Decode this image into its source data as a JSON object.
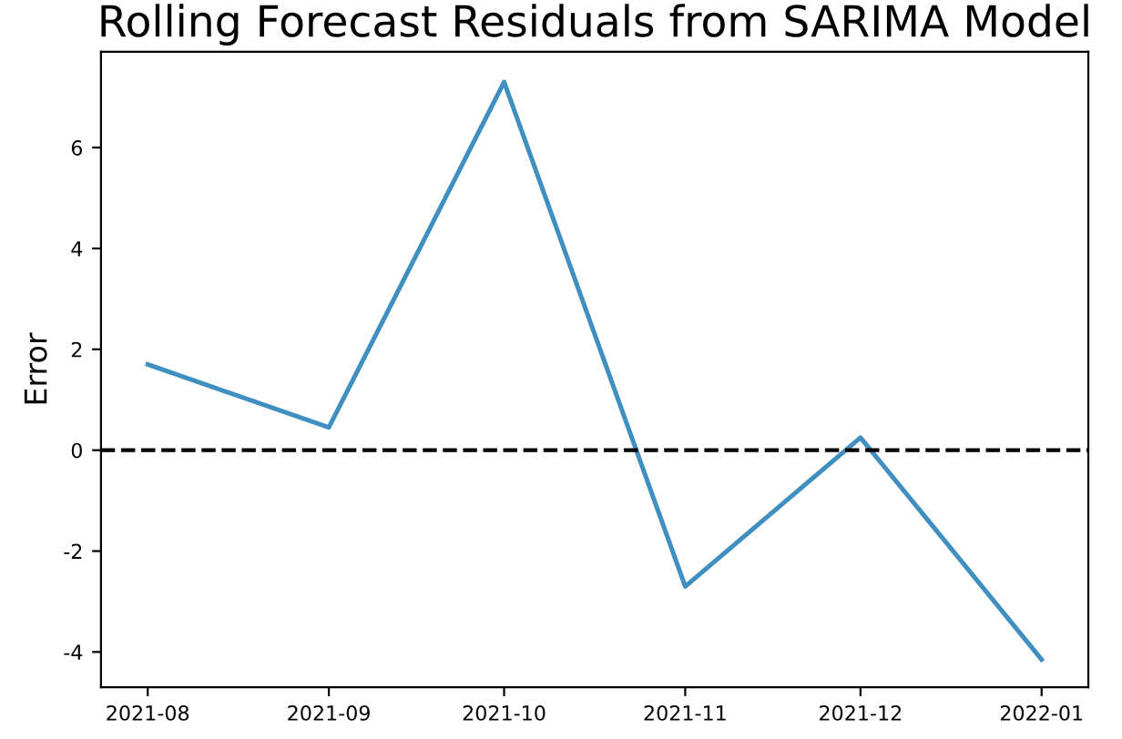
{
  "chart_data": {
    "type": "line",
    "title": "Rolling Forecast Residuals from SARIMA Model",
    "ylabel": "Error",
    "x": [
      "2021-08",
      "2021-09",
      "2021-10",
      "2021-11",
      "2021-12",
      "2022-01"
    ],
    "series": [
      {
        "color": "#3f8fc0",
        "values": [
          1.7,
          0.45,
          7.3,
          -2.7,
          0.25,
          -4.15
        ]
      }
    ],
    "xlim": [
      "2021-07-24",
      "2022-01-09"
    ],
    "xticks": [
      "2021-08",
      "2021-09",
      "2021-10",
      "2021-11",
      "2021-12",
      "2022-01"
    ],
    "ylim": [
      -4.7,
      7.9
    ],
    "yticks": [
      -4,
      -2,
      0,
      2,
      4,
      6
    ],
    "ref_lines": [
      {
        "axis": "y",
        "value": 0,
        "color": "#000000",
        "line_style": "dashed"
      }
    ],
    "grid": false,
    "legend": false,
    "marker": "none",
    "line_style": "solid"
  }
}
